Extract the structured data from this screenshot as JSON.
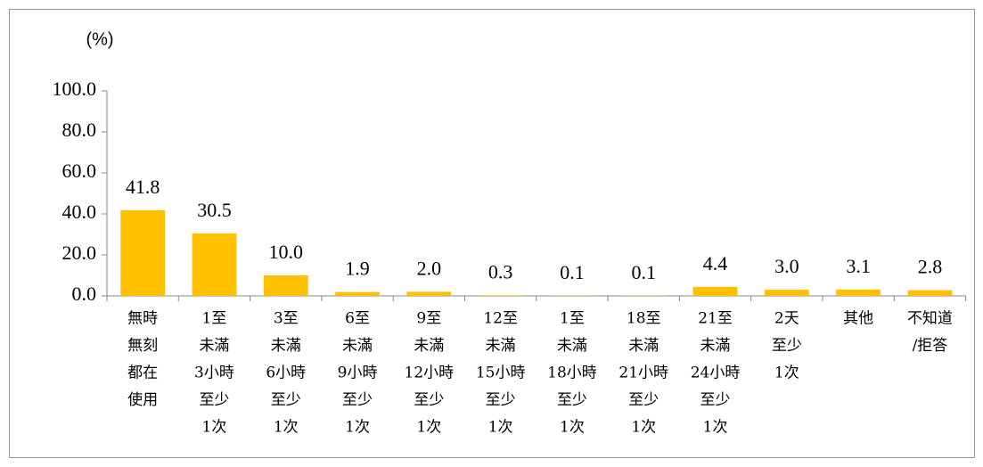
{
  "chart_data": {
    "type": "bar",
    "ylabel": "(%)",
    "categories": [
      [
        "無時",
        "無刻",
        "都在",
        "使用"
      ],
      [
        "1至",
        "未滿",
        "3小時",
        "至少",
        "1次"
      ],
      [
        "3至",
        "未滿",
        "6小時",
        "至少",
        "1次"
      ],
      [
        "6至",
        "未滿",
        "9小時",
        "至少",
        "1次"
      ],
      [
        "9至",
        "未滿",
        "12小時",
        "至少",
        "1次"
      ],
      [
        "12至",
        "未滿",
        "15小時",
        "至少",
        "1次"
      ],
      [
        "1至",
        "未滿",
        "18小時",
        "至少",
        "1次"
      ],
      [
        "18至",
        "未滿",
        "21小時",
        "至少",
        "1次"
      ],
      [
        "21至",
        "未滿",
        "24小時",
        "至少",
        "1次"
      ],
      [
        "2天",
        "至少",
        "1次"
      ],
      [
        "其他"
      ],
      [
        "不知道",
        "/拒答"
      ]
    ],
    "values": [
      41.8,
      30.5,
      10.0,
      1.9,
      2.0,
      0.3,
      0.1,
      0.1,
      4.4,
      3.0,
      3.1,
      2.8
    ],
    "value_labels": [
      "41.8",
      "30.5",
      "10.0",
      "1.9",
      "2.0",
      "0.3",
      "0.1",
      "0.1",
      "4.4",
      "3.0",
      "3.1",
      "2.8"
    ],
    "color": "#ffc000",
    "ylim": [
      0,
      100
    ],
    "yticks": [
      {
        "value": 0,
        "label": "0.0"
      },
      {
        "value": 20,
        "label": "20.0"
      },
      {
        "value": 40,
        "label": "40.0"
      },
      {
        "value": 60,
        "label": "60.0"
      },
      {
        "value": 80,
        "label": "80.0"
      },
      {
        "value": 100,
        "label": "100.0"
      }
    ],
    "grid": false
  }
}
